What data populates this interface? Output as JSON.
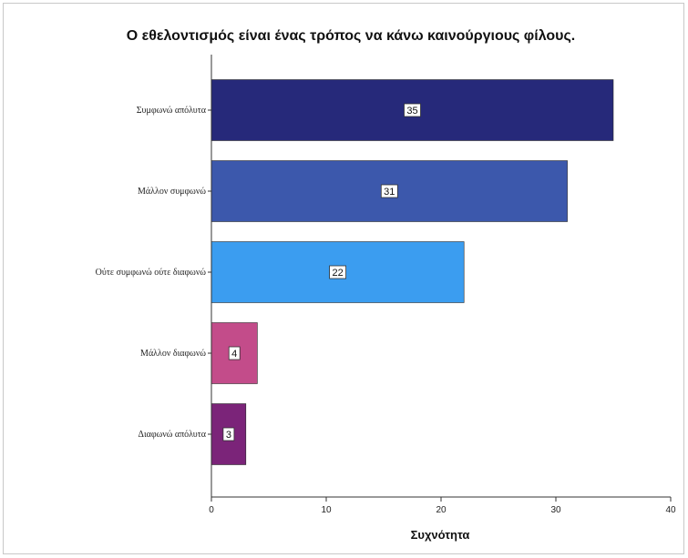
{
  "chart_data": {
    "type": "bar",
    "orientation": "horizontal",
    "title": "Ο εθελοντισμός είναι ένας τρόπος να κάνω καινούργιους φίλους.",
    "xlabel": "Συχνότητα",
    "ylabel": "",
    "categories": [
      "Συμφωνώ απόλυτα",
      "Μάλλον συμφωνώ",
      "Ούτε συμφωνώ ούτε διαφωνώ",
      "Μάλλον διαφωνώ",
      "Διαφωνώ απόλυτα"
    ],
    "values": [
      35,
      31,
      22,
      4,
      3
    ],
    "xlim": [
      0,
      40
    ],
    "xticks": [
      0,
      10,
      20,
      30,
      40
    ],
    "colors": [
      "#26297a",
      "#3c58ac",
      "#3b9df0",
      "#c34c8a",
      "#7b2479"
    ],
    "grid": false,
    "data_labels": true
  }
}
